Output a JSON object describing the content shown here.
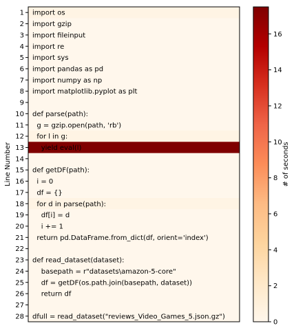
{
  "chart_data": {
    "type": "heatmap",
    "ylabel": "Line Number",
    "colorbar_label": "# of seconds",
    "colorbar_range": [
      0,
      17.5
    ],
    "colorbar_ticks": [
      0,
      2,
      4,
      6,
      8,
      10,
      12,
      14,
      16
    ],
    "colormap": [
      "#fff7ec",
      "#fee8c8",
      "#fdd49e",
      "#fdbb84",
      "#fc8d59",
      "#ef6548",
      "#d7301f",
      "#b30000",
      "#7f0000"
    ],
    "lines": [
      {
        "line": 1,
        "code": "import os",
        "seconds": 0.5
      },
      {
        "line": 2,
        "code": "import gzip",
        "seconds": 0
      },
      {
        "line": 3,
        "code": "import fileinput",
        "seconds": 0
      },
      {
        "line": 4,
        "code": "import re",
        "seconds": 0
      },
      {
        "line": 5,
        "code": "import sys",
        "seconds": 0
      },
      {
        "line": 6,
        "code": "import pandas as pd",
        "seconds": 0
      },
      {
        "line": 7,
        "code": "import numpy as np",
        "seconds": 0
      },
      {
        "line": 8,
        "code": "import matplotlib.pyplot as plt",
        "seconds": 0
      },
      {
        "line": 9,
        "code": "",
        "seconds": 0
      },
      {
        "line": 10,
        "code": "def parse(path):",
        "seconds": 0
      },
      {
        "line": 11,
        "code": "  g = gzip.open(path, 'rb')",
        "seconds": 0
      },
      {
        "line": 12,
        "code": "  for l in g:",
        "seconds": 0.5
      },
      {
        "line": 13,
        "code": "    yield eval(l)",
        "seconds": 17.5
      },
      {
        "line": 14,
        "code": "",
        "seconds": 0
      },
      {
        "line": 15,
        "code": "def getDF(path):",
        "seconds": 0
      },
      {
        "line": 16,
        "code": "  i = 0",
        "seconds": 0
      },
      {
        "line": 17,
        "code": "  df = {}",
        "seconds": 0
      },
      {
        "line": 18,
        "code": "  for d in parse(path):",
        "seconds": 0.5
      },
      {
        "line": 19,
        "code": "    df[i] = d",
        "seconds": 0
      },
      {
        "line": 20,
        "code": "    i += 1",
        "seconds": 0
      },
      {
        "line": 21,
        "code": "  return pd.DataFrame.from_dict(df, orient='index')",
        "seconds": 0
      },
      {
        "line": 22,
        "code": "",
        "seconds": 0
      },
      {
        "line": 23,
        "code": "def read_dataset(dataset):",
        "seconds": 0
      },
      {
        "line": 24,
        "code": "    basepath = r\"datasets\\amazon-5-core\"",
        "seconds": 0
      },
      {
        "line": 25,
        "code": "    df = getDF(os.path.join(basepath, dataset))",
        "seconds": 0
      },
      {
        "line": 26,
        "code": "    return df",
        "seconds": 0
      },
      {
        "line": 27,
        "code": "",
        "seconds": 0
      },
      {
        "line": 28,
        "code": "dfull = read_dataset(\"reviews_Video_Games_5.json.gz\")",
        "seconds": 0
      }
    ]
  }
}
